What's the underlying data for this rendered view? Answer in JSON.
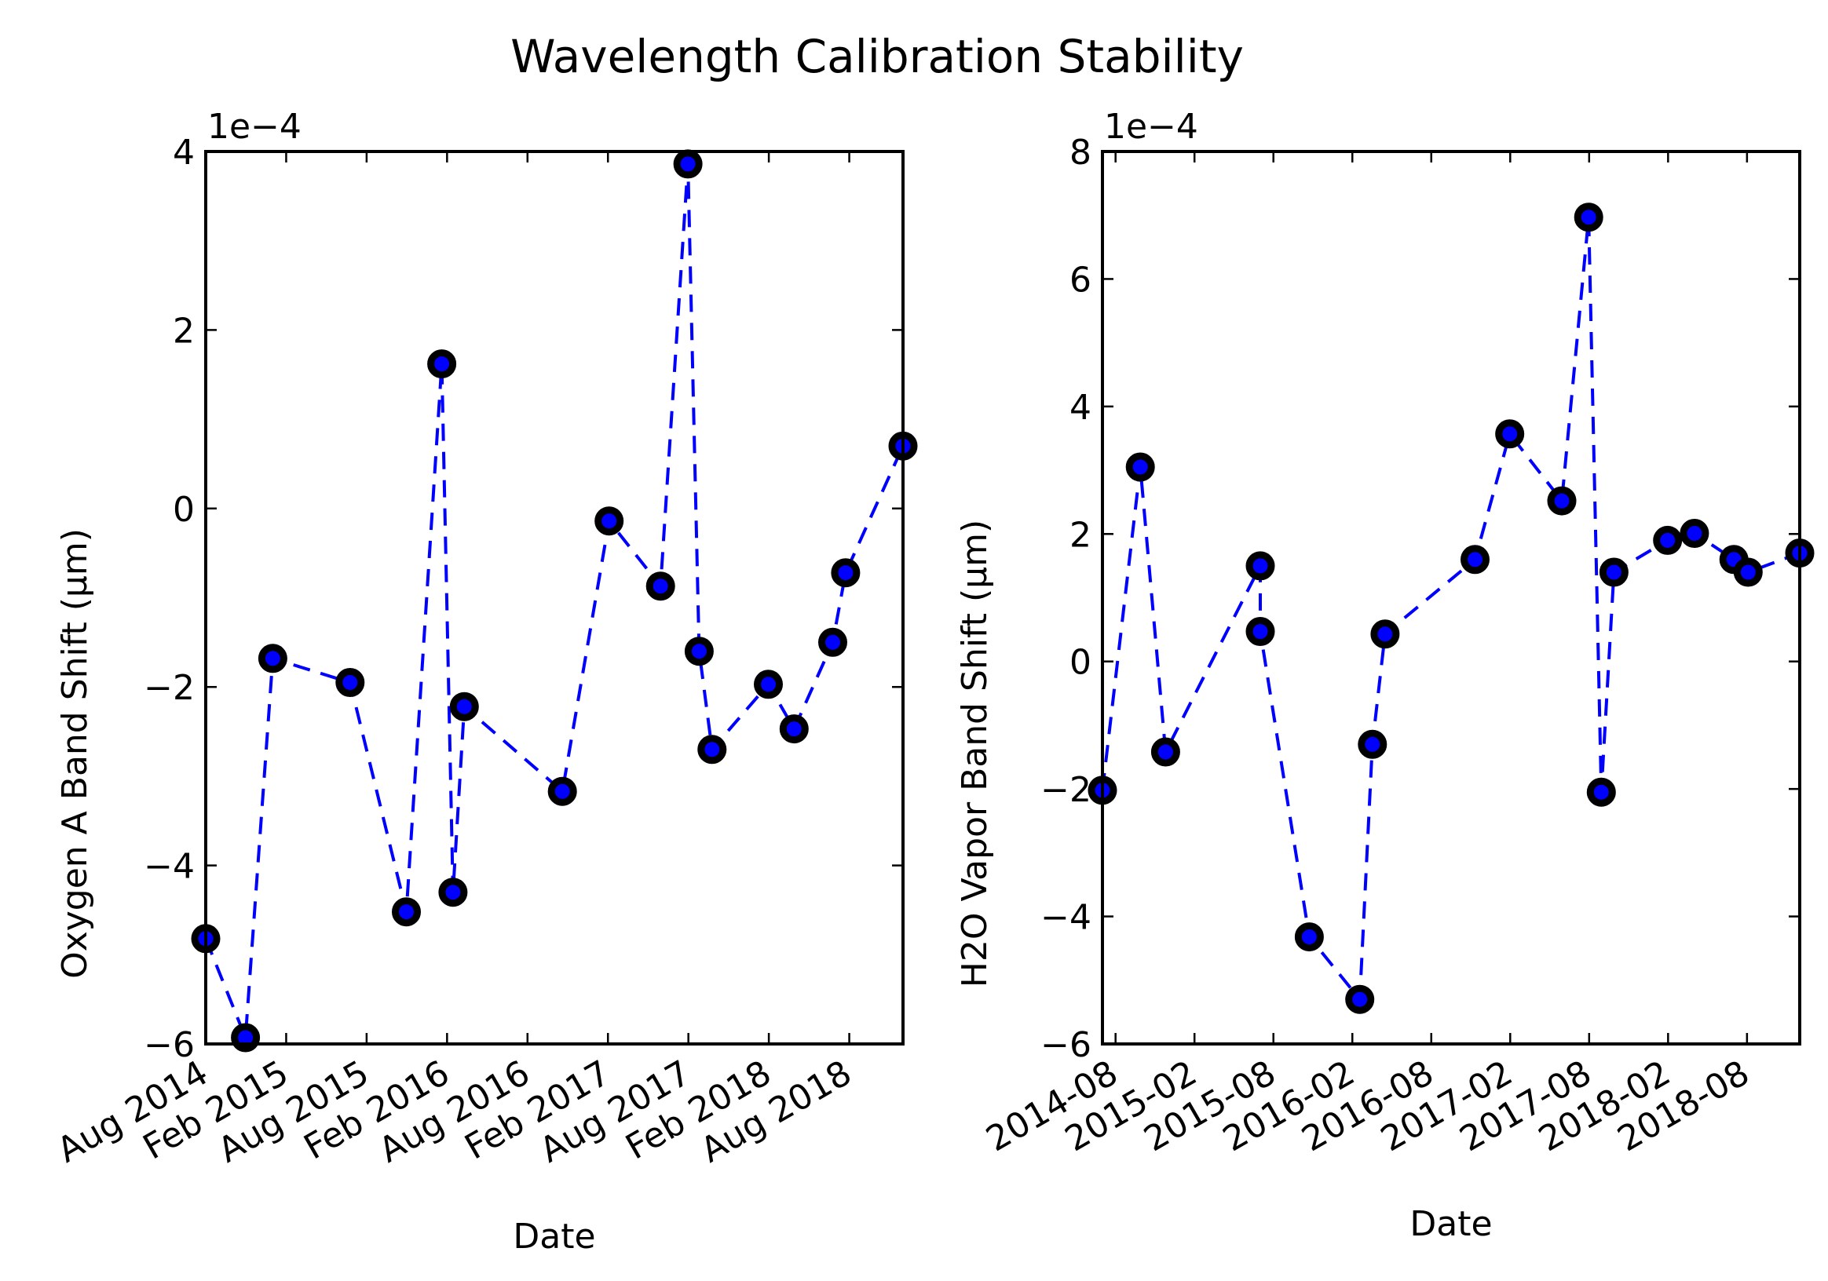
{
  "figure": {
    "title": "Wavelength Calibration Stability"
  },
  "colors": {
    "series": "#0000ff",
    "marker_edge": "#000000",
    "axes": "#000000",
    "background": "#ffffff"
  },
  "chart_data": [
    {
      "type": "line",
      "id": "oxygen",
      "title": "",
      "xlabel": "Date",
      "ylabel": "Oxygen A Band Shift (μm)",
      "y_offset_label": "1e−4",
      "y_scale": 0.0001,
      "ylim": [
        -6,
        4
      ],
      "yticks": [
        -6,
        -4,
        -2,
        0,
        2,
        4
      ],
      "ytick_labels": [
        "−6",
        "−4",
        "−2",
        "0",
        "2",
        "4"
      ],
      "xlim": [
        2014.583,
        2018.917
      ],
      "xticks": [
        2014.583,
        2015.083,
        2015.583,
        2016.083,
        2016.583,
        2017.083,
        2017.583,
        2018.083,
        2018.583
      ],
      "xtick_labels": [
        "Aug 2014",
        "Feb 2015",
        "Aug 2015",
        "Feb 2016",
        "Aug 2016",
        "Feb 2017",
        "Aug 2017",
        "Feb 2018",
        "Aug 2018"
      ],
      "x": [
        2014.583,
        2014.83,
        2015.0,
        2015.48,
        2015.83,
        2016.05,
        2016.12,
        2016.19,
        2016.8,
        2017.09,
        2017.41,
        2017.58,
        2017.65,
        2017.73,
        2018.08,
        2018.24,
        2018.48,
        2018.56,
        2018.917
      ],
      "values": [
        -4.82,
        -5.93,
        -1.68,
        -1.95,
        -4.52,
        1.62,
        -4.3,
        -2.22,
        -3.17,
        -0.14,
        -0.87,
        3.86,
        -1.6,
        -2.7,
        -1.97,
        -2.47,
        -1.5,
        -0.72,
        0.7
      ],
      "series_name": "Oxygen A Band Shift"
    },
    {
      "type": "line",
      "id": "h2o",
      "title": "",
      "xlabel": "Date",
      "ylabel": "H2O Vapor Band Shift (μm)",
      "y_offset_label": "1e−4",
      "y_scale": 0.0001,
      "ylim": [
        -6,
        8
      ],
      "yticks": [
        -6,
        -4,
        -2,
        0,
        2,
        4,
        6,
        8
      ],
      "ytick_labels": [
        "−6",
        "−4",
        "−2",
        "0",
        "2",
        "4",
        "6",
        "8"
      ],
      "xlim": [
        2014.5,
        2018.917
      ],
      "xticks": [
        2014.583,
        2015.083,
        2015.583,
        2016.083,
        2016.583,
        2017.083,
        2017.583,
        2018.083,
        2018.583
      ],
      "xtick_labels": [
        "2014-08",
        "2015-02",
        "2015-08",
        "2016-02",
        "2016-08",
        "2017-02",
        "2017-08",
        "2018-02",
        "2018-08"
      ],
      "x": [
        2014.5,
        2014.74,
        2014.9,
        2015.5,
        2015.5,
        2015.81,
        2016.13,
        2016.21,
        2016.29,
        2016.86,
        2017.08,
        2017.41,
        2017.58,
        2017.66,
        2017.74,
        2018.08,
        2018.25,
        2018.5,
        2018.59,
        2018.917
      ],
      "values": [
        -2.02,
        3.05,
        -1.42,
        1.5,
        0.47,
        -4.32,
        -5.3,
        -1.3,
        0.43,
        1.6,
        3.57,
        2.52,
        6.97,
        -2.05,
        1.4,
        1.9,
        2.01,
        1.6,
        1.4,
        1.7
      ],
      "series_name": "H2O Vapor Band Shift"
    }
  ]
}
